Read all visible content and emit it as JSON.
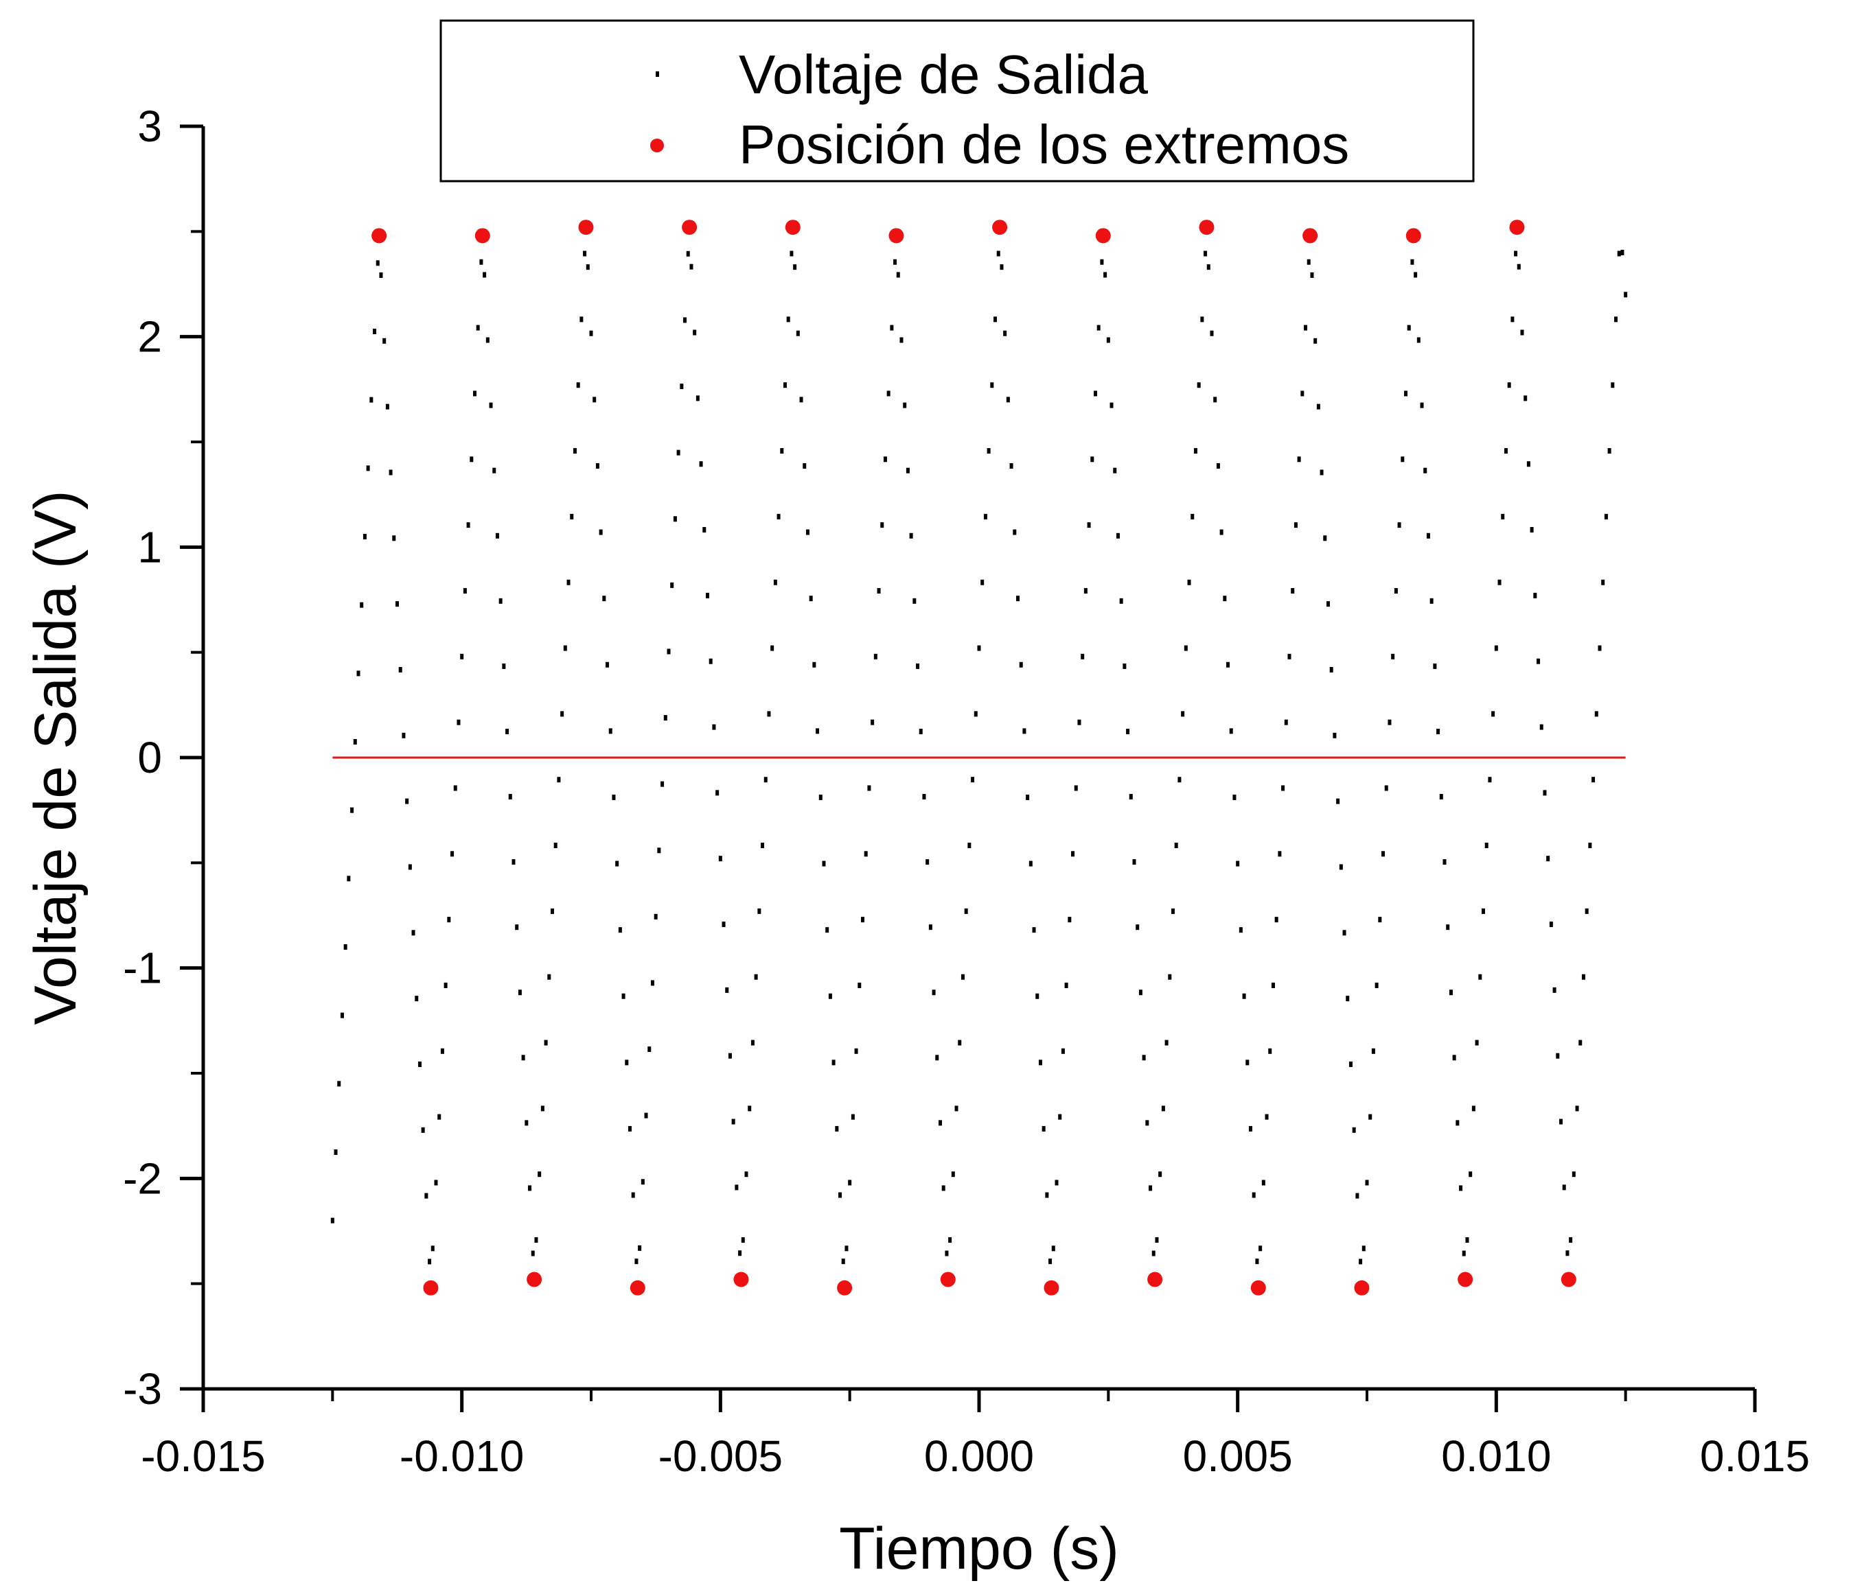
{
  "chart_data": {
    "type": "scatter",
    "title": "",
    "xlabel": "Tiempo (s)",
    "ylabel": "Voltaje de Salida (V)",
    "xlim": [
      -0.015,
      0.015
    ],
    "ylim": [
      -3,
      3
    ],
    "xticks": [
      "-0.015",
      "-0.010",
      "-0.005",
      "0.000",
      "0.005",
      "0.010",
      "0.015"
    ],
    "xtick_values": [
      -0.015,
      -0.01,
      -0.005,
      0.0,
      0.005,
      0.01,
      0.015
    ],
    "yticks": [
      "-3",
      "-2",
      "-1",
      "0",
      "1",
      "2",
      "3"
    ],
    "ytick_values": [
      -3,
      -2,
      -1,
      0,
      1,
      2,
      3
    ],
    "grid": false,
    "legend": {
      "placement": "top-center",
      "entries": [
        "Voltaje de Salida",
        "Posición de los extremos"
      ]
    },
    "reference_line": {
      "y": 0,
      "x_range": [
        -0.0125,
        0.0125
      ],
      "color": "#e31a1c"
    },
    "series": [
      {
        "name": "Voltaje de Salida",
        "marker": "small-square",
        "color": "#000000",
        "waveform": "triangle",
        "x_start": -0.0125,
        "x_end": 0.0125,
        "sample_step": 6.25e-05,
        "vertices": [
          [
            -0.0125,
            -2.2
          ],
          [
            -0.0116,
            2.48
          ],
          [
            -0.0106,
            -2.52
          ],
          [
            -0.0096,
            2.48
          ],
          [
            -0.0086,
            -2.48
          ],
          [
            -0.0076,
            2.52
          ],
          [
            -0.0066,
            -2.52
          ],
          [
            -0.0056,
            2.52
          ],
          [
            -0.0046,
            -2.48
          ],
          [
            -0.0036,
            2.52
          ],
          [
            -0.0026,
            -2.52
          ],
          [
            -0.0016,
            2.48
          ],
          [
            -0.0006,
            -2.48
          ],
          [
            0.0004,
            2.52
          ],
          [
            0.0014,
            -2.52
          ],
          [
            0.0024,
            2.48
          ],
          [
            0.0034,
            -2.48
          ],
          [
            0.0044,
            2.52
          ],
          [
            0.0054,
            -2.52
          ],
          [
            0.0064,
            2.48
          ],
          [
            0.0074,
            -2.52
          ],
          [
            0.0084,
            2.48
          ],
          [
            0.0094,
            -2.48
          ],
          [
            0.0104,
            2.52
          ],
          [
            0.0114,
            -2.48
          ],
          [
            0.0124,
            2.52
          ],
          [
            0.0125,
            2.2
          ]
        ]
      },
      {
        "name": "Posición de los extremos",
        "marker": "circle",
        "color": "#ee1111",
        "points": [
          [
            -0.0116,
            2.48
          ],
          [
            -0.0106,
            -2.52
          ],
          [
            -0.0096,
            2.48
          ],
          [
            -0.0086,
            -2.48
          ],
          [
            -0.0076,
            2.52
          ],
          [
            -0.0066,
            -2.52
          ],
          [
            -0.0056,
            2.52
          ],
          [
            -0.0046,
            -2.48
          ],
          [
            -0.0036,
            2.52
          ],
          [
            -0.0026,
            -2.52
          ],
          [
            -0.0016,
            2.48
          ],
          [
            -0.0006,
            -2.48
          ],
          [
            0.0004,
            2.52
          ],
          [
            0.0014,
            -2.52
          ],
          [
            0.0024,
            2.48
          ],
          [
            0.0034,
            -2.48
          ],
          [
            0.0044,
            2.52
          ],
          [
            0.0054,
            -2.52
          ],
          [
            0.0064,
            2.48
          ],
          [
            0.0074,
            -2.52
          ],
          [
            0.0084,
            2.48
          ],
          [
            0.0094,
            -2.48
          ],
          [
            0.0104,
            2.52
          ],
          [
            0.0114,
            -2.48
          ]
        ]
      }
    ]
  }
}
